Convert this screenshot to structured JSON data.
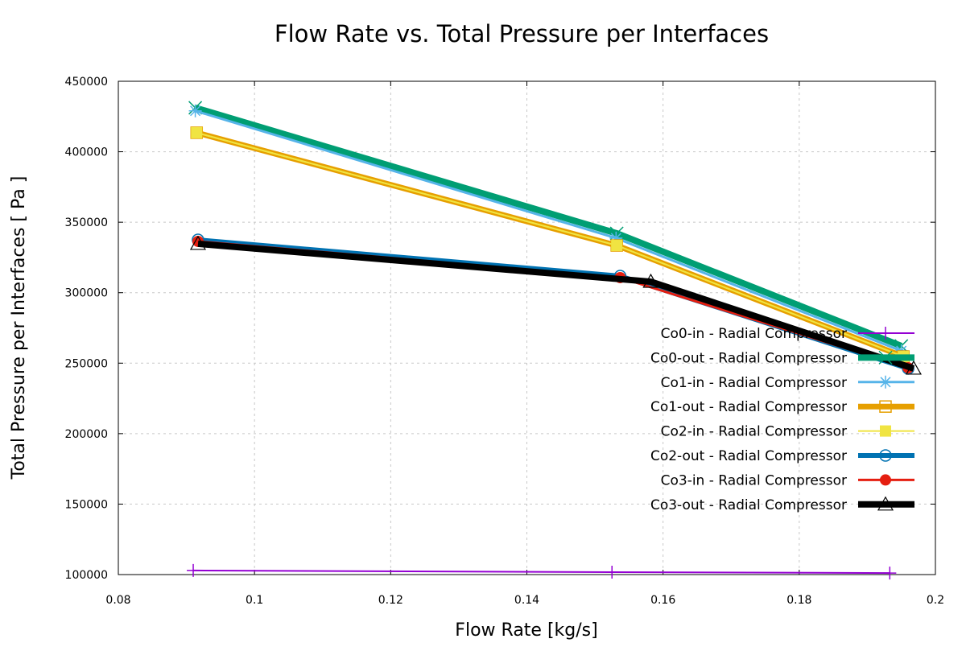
{
  "chart_data": {
    "type": "line",
    "title": "Flow Rate  vs. Total Pressure per Interfaces",
    "xlabel": "Flow Rate [kg/s]",
    "ylabel": "Total Pressure per Interfaces [ Pa ]",
    "xlim": [
      0.08,
      0.2
    ],
    "ylim": [
      100000,
      450000
    ],
    "xticks": [
      "0.08",
      "0.1",
      "0.12",
      "0.14",
      "0.16",
      "0.18",
      "0.2"
    ],
    "yticks": [
      "100000",
      "150000",
      "200000",
      "250000",
      "300000",
      "350000",
      "400000",
      "450000"
    ],
    "grid": true,
    "legend_position": "right",
    "series": [
      {
        "name": "Co0-in - Radial Compressor",
        "color": "#9400d3",
        "marker": "plus",
        "x": [
          0.091,
          0.1525,
          0.1933
        ],
        "y": [
          102900,
          101700,
          101100
        ]
      },
      {
        "name": "Co0-out - Radial Compressor",
        "color": "#009e73",
        "marker": "cross",
        "x": [
          0.0913,
          0.1532,
          0.195
        ],
        "y": [
          431200,
          342100,
          262200
        ]
      },
      {
        "name": "Co1-in - Radial Compressor",
        "color": "#56b4e9",
        "marker": "star",
        "x": [
          0.0913,
          0.1531,
          0.195
        ],
        "y": [
          429000,
          338700,
          258700
        ]
      },
      {
        "name": "Co1-out - Radial Compressor",
        "color": "#e69f00",
        "marker": "open-square",
        "x": [
          0.0915,
          0.1532,
          0.1953
        ],
        "y": [
          413500,
          333500,
          254700
        ]
      },
      {
        "name": "Co2-in - Radial Compressor",
        "color": "#f0e442",
        "marker": "filled-square",
        "x": [
          0.0915,
          0.1532,
          0.1953
        ],
        "y": [
          413500,
          333500,
          254700
        ]
      },
      {
        "name": "Co2-out - Radial Compressor",
        "color": "#0072b2",
        "marker": "open-circle",
        "x": [
          0.0917,
          0.1537,
          0.196
        ],
        "y": [
          337500,
          311800,
          246200
        ]
      },
      {
        "name": "Co3-in - Radial Compressor",
        "color": "#e51e10",
        "marker": "filled-circle",
        "x": [
          0.0917,
          0.1537,
          0.196
        ],
        "y": [
          336400,
          310700,
          246700
        ]
      },
      {
        "name": "Co3-out - Radial Compressor",
        "color": "#000000",
        "marker": "open-triangle",
        "x": [
          0.0917,
          0.1582,
          0.1968
        ],
        "y": [
          334700,
          307800,
          246200
        ]
      }
    ]
  }
}
